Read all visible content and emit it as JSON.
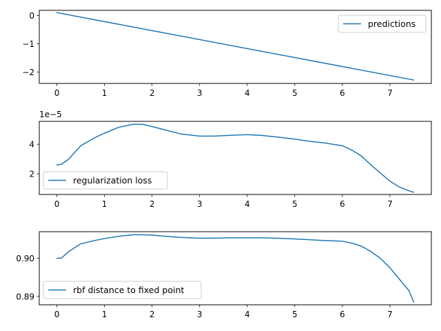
{
  "chart_data": [
    {
      "type": "line",
      "xlim": [
        -0.37,
        7.87
      ],
      "ylim": [
        -2.4,
        0.18
      ],
      "x_ticks": [
        0,
        1,
        2,
        3,
        4,
        5,
        6,
        7
      ],
      "y_ticks": [
        0,
        -1,
        -2
      ],
      "y_tick_labels": [
        "0",
        "−1",
        "−2"
      ],
      "offset_text": "",
      "legend_loc": "top-right",
      "series": [
        {
          "name": "predictions",
          "color": "#1f77b4",
          "x": [
            0,
            7.5
          ],
          "y": [
            0.1,
            -2.28
          ]
        }
      ]
    },
    {
      "type": "line",
      "xlim": [
        -0.37,
        7.87
      ],
      "ylim": [
        0.6,
        5.55
      ],
      "x_ticks": [
        0,
        1,
        2,
        3,
        4,
        5,
        6,
        7
      ],
      "y_ticks": [
        2,
        4
      ],
      "y_tick_labels": [
        "2",
        "4"
      ],
      "offset_text": "1e−5",
      "legend_loc": "bottom-left",
      "series": [
        {
          "name": "regularization loss",
          "color": "#1f77b4",
          "x": [
            0,
            0.1,
            0.25,
            0.5,
            0.8,
            1.0,
            1.3,
            1.6,
            1.8,
            2.0,
            2.3,
            2.6,
            3.0,
            3.3,
            3.6,
            4.0,
            4.3,
            4.6,
            5.0,
            5.3,
            5.6,
            6.0,
            6.2,
            6.4,
            6.6,
            6.8,
            7.0,
            7.2,
            7.4,
            7.5
          ],
          "y": [
            2.6,
            2.65,
            3.0,
            3.9,
            4.45,
            4.75,
            5.15,
            5.35,
            5.35,
            5.2,
            4.95,
            4.7,
            4.55,
            4.55,
            4.6,
            4.65,
            4.6,
            4.5,
            4.35,
            4.2,
            4.1,
            3.9,
            3.6,
            3.2,
            2.6,
            2.05,
            1.5,
            1.1,
            0.85,
            0.75
          ]
        }
      ]
    },
    {
      "type": "line",
      "xlim": [
        -0.37,
        7.87
      ],
      "ylim": [
        0.8878,
        0.907
      ],
      "x_ticks": [
        0,
        1,
        2,
        3,
        4,
        5,
        6,
        7
      ],
      "y_ticks": [
        0.9,
        0.89
      ],
      "y_tick_labels": [
        "0.90",
        "0.89"
      ],
      "offset_text": "",
      "legend_loc": "bottom-left",
      "series": [
        {
          "name": "rbf distance to fixed point",
          "color": "#1f77b4",
          "x": [
            0,
            0.1,
            0.25,
            0.5,
            0.8,
            1.0,
            1.3,
            1.6,
            1.8,
            2.0,
            2.3,
            2.6,
            3.0,
            3.3,
            3.6,
            4.0,
            4.3,
            4.6,
            5.0,
            5.3,
            5.6,
            6.0,
            6.2,
            6.4,
            6.6,
            6.8,
            7.0,
            7.2,
            7.4,
            7.5
          ],
          "y": [
            0.9,
            0.9001,
            0.9018,
            0.9038,
            0.9047,
            0.9052,
            0.9058,
            0.9062,
            0.9062,
            0.9061,
            0.9058,
            0.9055,
            0.9053,
            0.9053,
            0.9054,
            0.9054,
            0.9054,
            0.9053,
            0.9051,
            0.9049,
            0.9047,
            0.9045,
            0.904,
            0.9032,
            0.9018,
            0.9,
            0.8975,
            0.8945,
            0.8915,
            0.8885
          ]
        }
      ]
    }
  ]
}
